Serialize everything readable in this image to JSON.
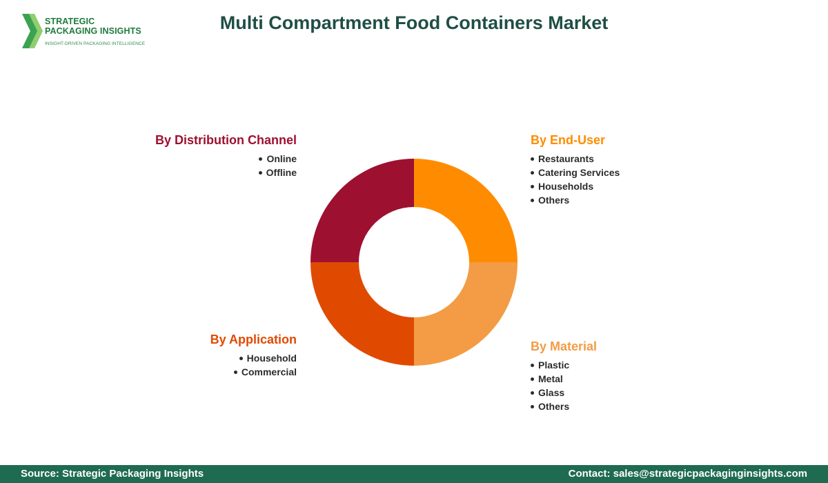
{
  "header": {
    "title": "Multi Compartment Food Containers Market",
    "logo": {
      "line1": "STRATEGIC",
      "line2": "PACKAGING INSIGHTS",
      "tagline": "INSIGHT-DRIVEN PACKAGING INTELLIGENCE"
    }
  },
  "chart_data": {
    "type": "pie",
    "donut": true,
    "slices": [
      {
        "name": "By End-User",
        "value": 25,
        "color": "#ff8c00"
      },
      {
        "name": "By Material",
        "value": 25,
        "color": "#f39c45"
      },
      {
        "name": "By Application",
        "value": 25,
        "color": "#e04a00"
      },
      {
        "name": "By Distribution Channel",
        "value": 25,
        "color": "#9e1030"
      }
    ]
  },
  "segments": {
    "end_user": {
      "title": "By End-User",
      "color": "#ff8c00",
      "items": [
        "Restaurants",
        "Catering Services",
        "Households",
        "Others"
      ]
    },
    "material": {
      "title": "By Material",
      "color": "#f39c45",
      "items": [
        "Plastic",
        "Metal",
        "Glass",
        "Others"
      ]
    },
    "application": {
      "title": "By Application",
      "color": "#e04a00",
      "items": [
        "Household",
        "Commercial"
      ]
    },
    "distribution": {
      "title": "By Distribution Channel",
      "color": "#9e1030",
      "items": [
        "Online",
        "Offline"
      ]
    }
  },
  "footer": {
    "source": "Source: Strategic Packaging Insights",
    "contact": "Contact: sales@strategicpackaginginsights.com"
  }
}
